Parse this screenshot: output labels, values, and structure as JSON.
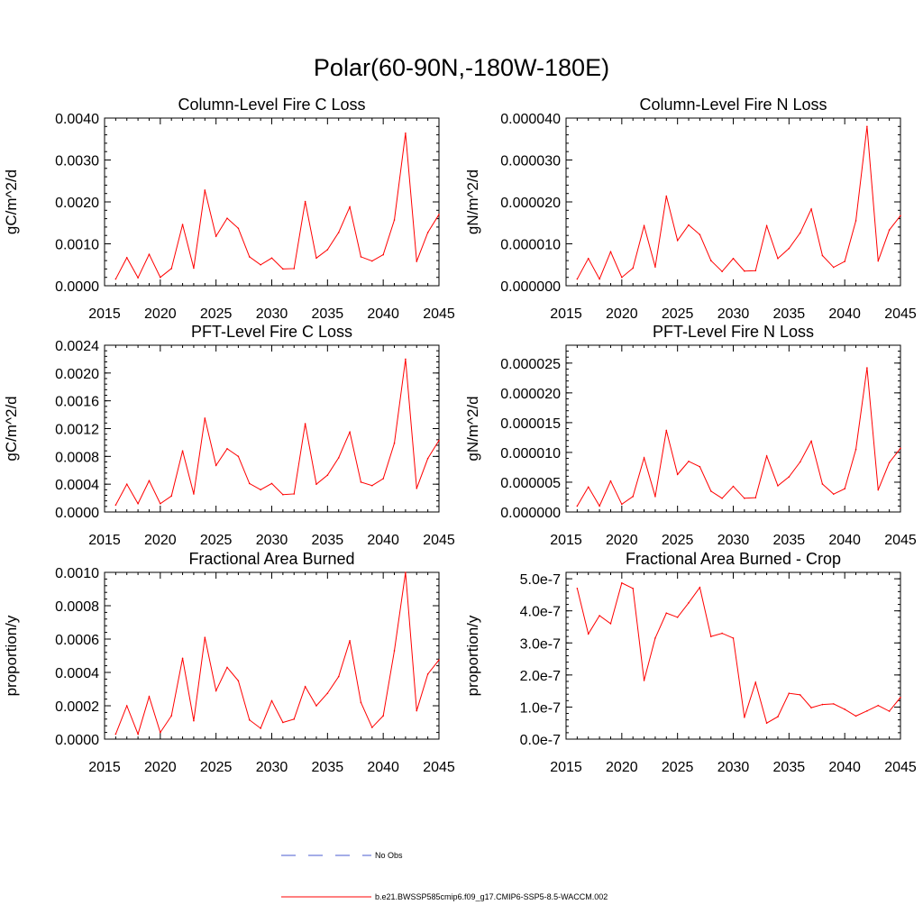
{
  "figure": {
    "title": "Polar(60-90N,-180W-180E)",
    "line_color": "#ff0000",
    "obs_line_color": "#4a5bd0",
    "legend": [
      {
        "label": "No Obs",
        "style": "dashed"
      },
      {
        "label": "b.e21.BWSSP585cmip6.f09_g17.CMIP6-SSP5-8.5-WACCM.002",
        "style": "solid"
      }
    ]
  },
  "chart_data": [
    {
      "type": "line",
      "title": "Column-Level Fire C Loss",
      "ylabel": "gC/m^2/d",
      "xlim": [
        2015,
        2045
      ],
      "ylim": [
        0,
        0.004
      ],
      "xticks": [
        2015,
        2020,
        2025,
        2030,
        2035,
        2040,
        2045
      ],
      "yticks": [
        0,
        0.001,
        0.002,
        0.003,
        0.004
      ],
      "ytick_labels": [
        "0.0000",
        "0.0010",
        "0.0020",
        "0.0030",
        "0.0040"
      ],
      "series": [
        {
          "x": [
            2016,
            2017,
            2018,
            2019,
            2020,
            2021,
            2022,
            2023,
            2024,
            2025,
            2026,
            2027,
            2028,
            2029,
            2030,
            2031,
            2032,
            2033,
            2034,
            2035,
            2036,
            2037,
            2038,
            2039,
            2040,
            2041,
            2042,
            2043,
            2044,
            2045
          ],
          "values": [
            0.00016,
            0.00067,
            0.00019,
            0.00075,
            0.0002,
            0.00041,
            0.00146,
            0.00042,
            0.00228,
            0.00118,
            0.00161,
            0.00137,
            0.00069,
            0.0005,
            0.00066,
            0.0004,
            0.00041,
            0.00201,
            0.00066,
            0.00086,
            0.00127,
            0.00188,
            0.00069,
            0.00059,
            0.00074,
            0.00157,
            0.00364,
            0.00058,
            0.00127,
            0.0017
          ]
        }
      ]
    },
    {
      "type": "line",
      "title": "Column-Level Fire N Loss",
      "ylabel": "gN/m^2/d",
      "xlim": [
        2015,
        2045
      ],
      "ylim": [
        0,
        4e-05
      ],
      "xticks": [
        2015,
        2020,
        2025,
        2030,
        2035,
        2040,
        2045
      ],
      "yticks": [
        0,
        1e-05,
        2e-05,
        3e-05,
        4e-05
      ],
      "ytick_labels": [
        "0.000000",
        "0.000010",
        "0.000020",
        "0.000030",
        "0.000040"
      ],
      "series": [
        {
          "x": [
            2016,
            2017,
            2018,
            2019,
            2020,
            2021,
            2022,
            2023,
            2024,
            2025,
            2026,
            2027,
            2028,
            2029,
            2030,
            2031,
            2032,
            2033,
            2034,
            2035,
            2036,
            2037,
            2038,
            2039,
            2040,
            2041,
            2042,
            2043,
            2044,
            2045
          ],
          "values": [
            1.6e-06,
            6.5e-06,
            1.6e-06,
            8.1e-06,
            2e-06,
            4.2e-06,
            1.43e-05,
            4.5e-06,
            2.14e-05,
            1.08e-05,
            1.45e-05,
            1.22e-05,
            6e-06,
            3.4e-06,
            6.5e-06,
            3.5e-06,
            3.6e-06,
            1.43e-05,
            6.5e-06,
            8.9e-06,
            1.26e-05,
            1.83e-05,
            7.2e-06,
            4.4e-06,
            5.8e-06,
            1.55e-05,
            3.8e-05,
            5.9e-06,
            1.33e-05,
            1.67e-05
          ]
        }
      ]
    },
    {
      "type": "line",
      "title": "PFT-Level Fire C Loss",
      "ylabel": "gC/m^2/d",
      "xlim": [
        2015,
        2045
      ],
      "ylim": [
        0,
        0.0024
      ],
      "xticks": [
        2015,
        2020,
        2025,
        2030,
        2035,
        2040,
        2045
      ],
      "yticks": [
        0,
        0.0004,
        0.0008,
        0.0012,
        0.0016,
        0.002,
        0.0024
      ],
      "ytick_labels": [
        "0.0000",
        "0.0004",
        "0.0008",
        "0.0012",
        "0.0016",
        "0.0020",
        "0.0024"
      ],
      "series": [
        {
          "x": [
            2016,
            2017,
            2018,
            2019,
            2020,
            2021,
            2022,
            2023,
            2024,
            2025,
            2026,
            2027,
            2028,
            2029,
            2030,
            2031,
            2032,
            2033,
            2034,
            2035,
            2036,
            2037,
            2038,
            2039,
            2040,
            2041,
            2042,
            2043,
            2044,
            2045
          ],
          "values": [
            0.0001,
            0.0004,
            0.00012,
            0.00045,
            0.00012,
            0.00023,
            0.00088,
            0.00026,
            0.00135,
            0.00067,
            0.00091,
            0.0008,
            0.00041,
            0.00032,
            0.00041,
            0.00025,
            0.00026,
            0.00127,
            0.0004,
            0.00053,
            0.00078,
            0.00115,
            0.00043,
            0.00038,
            0.00048,
            0.00099,
            0.0022,
            0.00034,
            0.00077,
            0.00103
          ]
        }
      ]
    },
    {
      "type": "line",
      "title": "PFT-Level Fire N Loss",
      "ylabel": "gN/m^2/d",
      "xlim": [
        2015,
        2045
      ],
      "ylim": [
        0,
        2.8e-05
      ],
      "xticks": [
        2015,
        2020,
        2025,
        2030,
        2035,
        2040,
        2045
      ],
      "yticks": [
        0,
        5e-06,
        1e-05,
        1.5e-05,
        2e-05,
        2.5e-05
      ],
      "ytick_labels": [
        "0.000000",
        "0.000005",
        "0.000010",
        "0.000015",
        "0.000020",
        "0.000025"
      ],
      "series": [
        {
          "x": [
            2016,
            2017,
            2018,
            2019,
            2020,
            2021,
            2022,
            2023,
            2024,
            2025,
            2026,
            2027,
            2028,
            2029,
            2030,
            2031,
            2032,
            2033,
            2034,
            2035,
            2036,
            2037,
            2038,
            2039,
            2040,
            2041,
            2042,
            2043,
            2044,
            2045
          ],
          "values": [
            1e-06,
            4.2e-06,
            1e-06,
            5.2e-06,
            1.3e-06,
            2.6e-06,
            9.1e-06,
            2.6e-06,
            1.37e-05,
            6.3e-06,
            8.5e-06,
            7.6e-06,
            3.5e-06,
            2.3e-06,
            4.3e-06,
            2.3e-06,
            2.4e-06,
            9.4e-06,
            4.4e-06,
            5.9e-06,
            8.4e-06,
            1.19e-05,
            4.7e-06,
            3e-06,
            3.9e-06,
            1.05e-05,
            2.42e-05,
            3.7e-06,
            8.3e-06,
            1.07e-05
          ]
        }
      ]
    },
    {
      "type": "line",
      "title": "Fractional Area Burned",
      "ylabel": "proportion/y",
      "xlim": [
        2015,
        2045
      ],
      "ylim": [
        0,
        0.001
      ],
      "xticks": [
        2015,
        2020,
        2025,
        2030,
        2035,
        2040,
        2045
      ],
      "yticks": [
        0,
        0.0002,
        0.0004,
        0.0006,
        0.0008,
        0.001
      ],
      "ytick_labels": [
        "0.0000",
        "0.0002",
        "0.0004",
        "0.0006",
        "0.0008",
        "0.0010"
      ],
      "series": [
        {
          "x": [
            2016,
            2017,
            2018,
            2019,
            2020,
            2021,
            2022,
            2023,
            2024,
            2025,
            2026,
            2027,
            2028,
            2029,
            2030,
            2031,
            2032,
            2033,
            2034,
            2035,
            2036,
            2037,
            2038,
            2039,
            2040,
            2041,
            2042,
            2043,
            2044,
            2045
          ],
          "values": [
            3e-05,
            0.0002,
            3e-05,
            0.000255,
            4e-05,
            0.00014,
            0.000485,
            0.00011,
            0.00061,
            0.00029,
            0.00043,
            0.00035,
            0.000115,
            6.5e-05,
            0.00023,
            0.0001,
            0.00012,
            0.000315,
            0.0002,
            0.000275,
            0.000375,
            0.00059,
            0.00022,
            7e-05,
            0.00014,
            0.00053,
            0.001,
            0.00017,
            0.00039,
            0.000475
          ]
        }
      ]
    },
    {
      "type": "line",
      "title": "Fractional Area Burned - Crop",
      "ylabel": "proportion/y",
      "xlim": [
        2015,
        2045
      ],
      "ylim": [
        0,
        5.2e-07
      ],
      "xticks": [
        2015,
        2020,
        2025,
        2030,
        2035,
        2040,
        2045
      ],
      "yticks": [
        0,
        1e-07,
        2e-07,
        3e-07,
        4e-07,
        5e-07
      ],
      "ytick_labels": [
        "0.0e-7",
        "1.0e-7",
        "2.0e-7",
        "3.0e-7",
        "4.0e-7",
        "5.0e-7"
      ],
      "series": [
        {
          "x": [
            2016,
            2017,
            2018,
            2019,
            2020,
            2021,
            2022,
            2023,
            2024,
            2025,
            2026,
            2027,
            2028,
            2029,
            2030,
            2031,
            2032,
            2033,
            2034,
            2035,
            2036,
            2037,
            2038,
            2039,
            2040,
            2041,
            2042,
            2043,
            2044,
            2045
          ],
          "values": [
            4.7e-07,
            3.28e-07,
            3.85e-07,
            3.6e-07,
            4.87e-07,
            4.7e-07,
            1.83e-07,
            3.15e-07,
            3.93e-07,
            3.8e-07,
            4.25e-07,
            4.73e-07,
            3.2e-07,
            3.3e-07,
            3.15e-07,
            6.8e-08,
            1.77e-07,
            5e-08,
            7e-08,
            1.43e-07,
            1.38e-07,
            9.8e-08,
            1.08e-07,
            1.1e-07,
            9.3e-08,
            7.2e-08,
            8.8e-08,
            1.05e-07,
            8.7e-08,
            1.3e-07
          ]
        }
      ]
    }
  ]
}
